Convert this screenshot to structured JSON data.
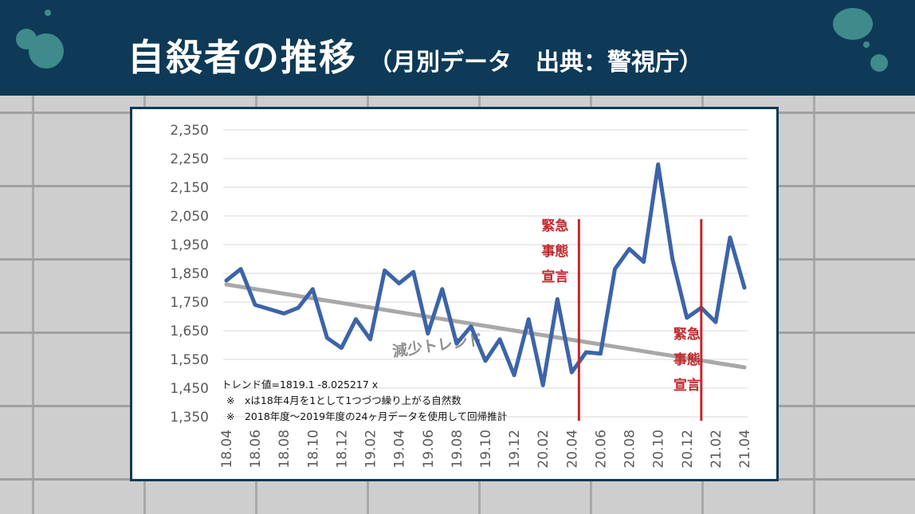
{
  "header": {
    "title": "自殺者の推移",
    "subtitle": "（月別データ　出典：警視庁）"
  },
  "colors": {
    "header_bg": "#0e3a57",
    "series": "#3c64a8",
    "trend": "#a8a8a8",
    "event": "#c0282d"
  },
  "chart_data": {
    "type": "line",
    "ylim": [
      1350,
      2350
    ],
    "yticks": [
      1350,
      1450,
      1550,
      1650,
      1750,
      1850,
      1950,
      2050,
      2150,
      2250,
      2350
    ],
    "ytick_labels": [
      "1,350",
      "1,450",
      "1,550",
      "1,650",
      "1,750",
      "1,850",
      "1,950",
      "2,050",
      "2,150",
      "2,250",
      "2,350"
    ],
    "x": [
      "18.04",
      "18.05",
      "18.06",
      "18.07",
      "18.08",
      "18.09",
      "18.10",
      "18.11",
      "18.12",
      "19.01",
      "19.02",
      "19.03",
      "19.04",
      "19.05",
      "19.06",
      "19.07",
      "19.08",
      "19.09",
      "19.10",
      "19.11",
      "19.12",
      "20.01",
      "20.02",
      "20.03",
      "20.04",
      "20.05",
      "20.06",
      "20.07",
      "20.08",
      "20.09",
      "20.10",
      "20.11",
      "20.12",
      "21.01",
      "21.02",
      "21.03",
      "21.04"
    ],
    "xtick_labels": [
      "18.04",
      "18.06",
      "18.08",
      "18.10",
      "18.12",
      "19.02",
      "19.04",
      "19.06",
      "19.08",
      "19.10",
      "19.12",
      "20.02",
      "20.04",
      "20.06",
      "20.08",
      "20.10",
      "20.12",
      "21.02",
      "21.04"
    ],
    "series": [
      {
        "values": [
          1825,
          1865,
          1740,
          1725,
          1710,
          1730,
          1795,
          1625,
          1590,
          1690,
          1620,
          1860,
          1815,
          1855,
          1640,
          1795,
          1605,
          1665,
          1545,
          1620,
          1495,
          1690,
          1460,
          1760,
          1505,
          1575,
          1570,
          1865,
          1935,
          1890,
          2230,
          1900,
          1695,
          1730,
          1680,
          1975,
          1800
        ]
      }
    ],
    "trend": {
      "label": "減少トレンド",
      "intercept": 1819.1,
      "slope": -8.025217
    },
    "events": [
      {
        "label_lines": [
          "緊急",
          "事態",
          "宣言"
        ],
        "at_index": 24.5,
        "label_side": "left"
      },
      {
        "label_lines": [
          "緊急",
          "事態",
          "宣言"
        ],
        "at_index": 33.0,
        "label_side": "below"
      }
    ],
    "notes": [
      "トレンド値=1819.1 -8.025217 x",
      "※　xは18年4月を1として1つづつ繰り上がる自然数",
      "※　2018年度～2019年度の24ヶ月データを使用して回帰推計"
    ],
    "grid": true
  }
}
